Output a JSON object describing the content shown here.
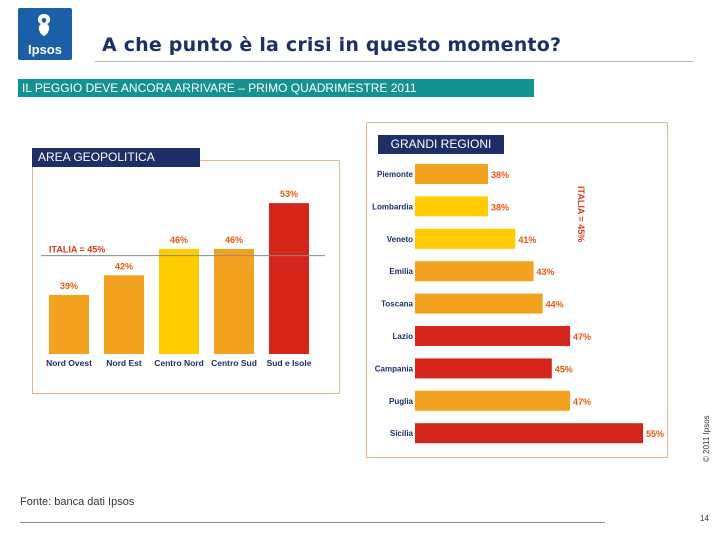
{
  "logo": {
    "text": "Ipsos"
  },
  "header": {
    "title": "A che punto è la crisi in questo momento?",
    "banner": "IL PEGGIO DEVE ANCORA ARRIVARE – PRIMO QUADRIMESTRE 2011"
  },
  "colors": {
    "orange": "#f3a21f",
    "yellow": "#ffcc00",
    "red": "#d6261c",
    "navy": "#1c2f66",
    "teal": "#149191",
    "darkorange": "#e8580e",
    "reflabel": "#d63a1c"
  },
  "chart_data": [
    {
      "type": "bar",
      "title": "AREA GEOPOLITICA",
      "categories": [
        "Nord Ovest",
        "Nord Est",
        "Centro Nord",
        "Centro Sud",
        "Sud e Isole"
      ],
      "values": [
        39,
        42,
        46,
        46,
        53
      ],
      "value_labels": [
        "39%",
        "42%",
        "46%",
        "46%",
        "53%"
      ],
      "bar_colors": [
        "#f3a21f",
        "#f3a21f",
        "#ffcc00",
        "#f3a21f",
        "#d6261c"
      ],
      "reference_value": 45,
      "reference_label": "ITALIA = 45%",
      "ylim": [
        30,
        55
      ],
      "xlabel": "",
      "ylabel": ""
    },
    {
      "type": "bar",
      "orientation": "horizontal",
      "title": "GRANDI REGIONI",
      "categories": [
        "Piemonte",
        "Lombardia",
        "Veneto",
        "Emilia",
        "Toscana",
        "Lazio",
        "Campania",
        "Puglia",
        "Sicilia"
      ],
      "values": [
        38,
        38,
        41,
        43,
        44,
        47,
        45,
        47,
        55
      ],
      "value_labels": [
        "38%",
        "38%",
        "41%",
        "43%",
        "44%",
        "47%",
        "45%",
        "47%",
        "55%"
      ],
      "bar_colors": [
        "#f3a21f",
        "#ffcc00",
        "#ffcc00",
        "#f3a21f",
        "#f3a21f",
        "#d6261c",
        "#d6261c",
        "#f3a21f",
        "#d6261c"
      ],
      "reference_value": 45,
      "reference_label": "ITALIA = 45%",
      "xlim": [
        30,
        55
      ],
      "xlabel": "",
      "ylabel": ""
    }
  ],
  "footer": {
    "source": "Fonte: banca dati Ipsos",
    "copyright": "© 2011 Ipsos",
    "page": "14"
  }
}
